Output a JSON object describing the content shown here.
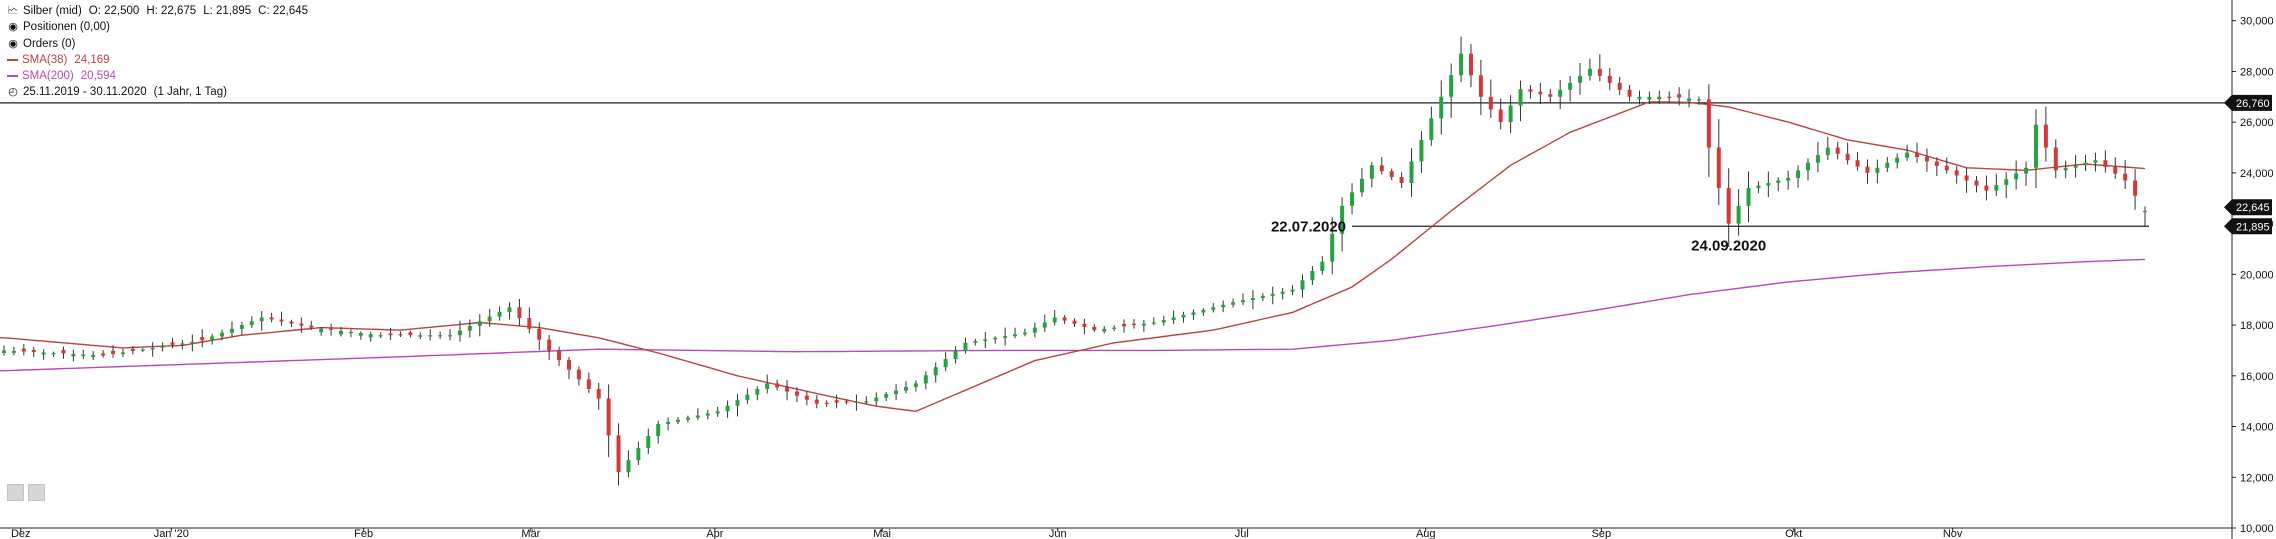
{
  "legend": {
    "instrument": "Silber (mid)",
    "open": "O: 22,500",
    "high": "H: 22,675",
    "low": "L: 21,895",
    "close": "C: 22,645",
    "positions": "Positionen (0,00)",
    "orders": "Orders (0)",
    "sma38": "SMA(38)",
    "sma38_value": "24,169",
    "sma200": "SMA(200)",
    "sma200_value": "20,594",
    "date_range": "25.11.2019 - 30.11.2020",
    "interval": "(1 Jahr, 1 Tag)"
  },
  "chart_data": {
    "type": "candlestick",
    "title": "Silber (mid)",
    "x_months": [
      "Dez",
      "Jan '20",
      "Feb",
      "Mär",
      "Apr",
      "Mai",
      "Jun",
      "Jul",
      "Aug",
      "Sep",
      "Okt",
      "Nov"
    ],
    "y_ticks": [
      "30,000",
      "28,000",
      "26,000",
      "24,000",
      "22,000",
      "20,000",
      "18,000",
      "16,000",
      "14,000",
      "12,000",
      "10,000"
    ],
    "ylim": [
      10,
      30.5
    ],
    "colors": {
      "up": "#26a241",
      "down": "#d23a3a",
      "sma38": "#b8443f",
      "sma200": "#b64ab8"
    },
    "horizontal_lines": [
      {
        "value": 26.76,
        "label": "26,760"
      },
      {
        "value": 21.895,
        "label": "21,895",
        "from_date": "22.07.2020"
      }
    ],
    "price_labels": [
      {
        "value": 22.645,
        "label": "22,645"
      }
    ],
    "annotations": [
      "22.07.2020",
      "24.09.2020"
    ],
    "close_anchors": [
      [
        0,
        17.0
      ],
      [
        10,
        16.8
      ],
      [
        20,
        17.4
      ],
      [
        26,
        18.3
      ],
      [
        31,
        17.9
      ],
      [
        38,
        17.6
      ],
      [
        45,
        17.6
      ],
      [
        51,
        18.7
      ],
      [
        55,
        17.0
      ],
      [
        60,
        15.1
      ],
      [
        62,
        12.2
      ],
      [
        66,
        14.1
      ],
      [
        72,
        14.6
      ],
      [
        77,
        15.7
      ],
      [
        82,
        14.9
      ],
      [
        87,
        15.0
      ],
      [
        92,
        15.7
      ],
      [
        97,
        17.3
      ],
      [
        103,
        17.7
      ],
      [
        106,
        18.3
      ],
      [
        110,
        17.8
      ],
      [
        116,
        18.1
      ],
      [
        124,
        18.9
      ],
      [
        130,
        19.4
      ],
      [
        133,
        20.5
      ],
      [
        135,
        22.7
      ],
      [
        138,
        24.3
      ],
      [
        141,
        23.6
      ],
      [
        145,
        27.0
      ],
      [
        147,
        28.7
      ],
      [
        149,
        27.0
      ],
      [
        151,
        26.0
      ],
      [
        153,
        27.3
      ],
      [
        156,
        27.0
      ],
      [
        160,
        28.1
      ],
      [
        164,
        27.0
      ],
      [
        168,
        27.0
      ],
      [
        171,
        26.9
      ],
      [
        172,
        25.0
      ],
      [
        173,
        23.4
      ],
      [
        174,
        22.0
      ],
      [
        176,
        23.4
      ],
      [
        180,
        23.8
      ],
      [
        184,
        25.0
      ],
      [
        188,
        24.0
      ],
      [
        192,
        24.8
      ],
      [
        196,
        24.1
      ],
      [
        200,
        23.3
      ],
      [
        204,
        24.2
      ],
      [
        205,
        25.9
      ],
      [
        207,
        24.1
      ],
      [
        211,
        24.5
      ],
      [
        214,
        23.7
      ],
      [
        216,
        22.5
      ]
    ],
    "sma38_anchors": [
      [
        0,
        17.5
      ],
      [
        12,
        17.1
      ],
      [
        18,
        17.2
      ],
      [
        24,
        17.6
      ],
      [
        32,
        17.9
      ],
      [
        40,
        17.8
      ],
      [
        48,
        18.1
      ],
      [
        54,
        17.9
      ],
      [
        60,
        17.5
      ],
      [
        66,
        16.9
      ],
      [
        74,
        16.0
      ],
      [
        82,
        15.3
      ],
      [
        88,
        14.8
      ],
      [
        92,
        14.6
      ],
      [
        98,
        15.6
      ],
      [
        104,
        16.6
      ],
      [
        112,
        17.3
      ],
      [
        122,
        17.8
      ],
      [
        130,
        18.5
      ],
      [
        136,
        19.5
      ],
      [
        140,
        20.6
      ],
      [
        146,
        22.5
      ],
      [
        152,
        24.3
      ],
      [
        158,
        25.6
      ],
      [
        166,
        26.8
      ],
      [
        170,
        26.78
      ],
      [
        174,
        26.6
      ],
      [
        180,
        26.0
      ],
      [
        186,
        25.3
      ],
      [
        192,
        24.9
      ],
      [
        198,
        24.2
      ],
      [
        204,
        24.1
      ],
      [
        210,
        24.35
      ],
      [
        216,
        24.17
      ]
    ],
    "sma200_anchors": [
      [
        0,
        16.2
      ],
      [
        40,
        16.75
      ],
      [
        60,
        17.05
      ],
      [
        80,
        16.95
      ],
      [
        100,
        17.0
      ],
      [
        116,
        17.0
      ],
      [
        130,
        17.05
      ],
      [
        140,
        17.4
      ],
      [
        150,
        17.95
      ],
      [
        160,
        18.55
      ],
      [
        170,
        19.2
      ],
      [
        180,
        19.7
      ],
      [
        190,
        20.05
      ],
      [
        200,
        20.3
      ],
      [
        210,
        20.5
      ],
      [
        216,
        20.59
      ]
    ]
  }
}
